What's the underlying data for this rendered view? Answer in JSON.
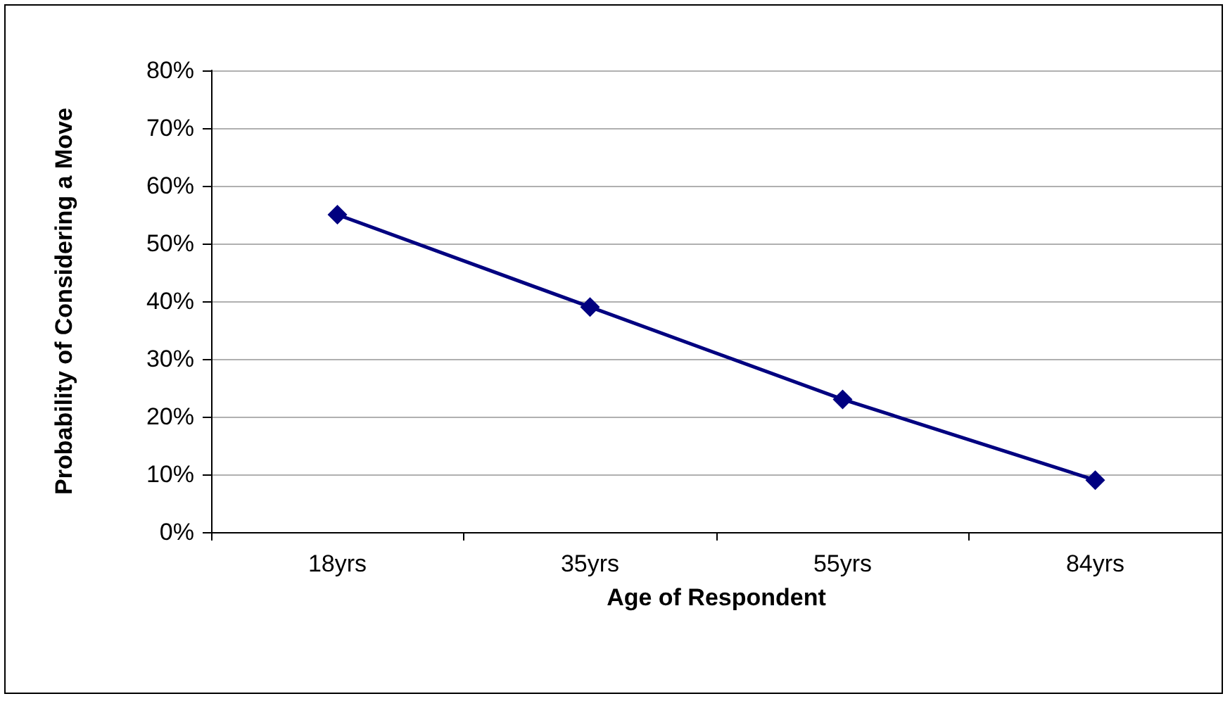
{
  "chart_data": {
    "type": "line",
    "xlabel": "Age of Respondent",
    "ylabel": "Probability of Considering a Move",
    "categories": [
      "18yrs",
      "35yrs",
      "55yrs",
      "84yrs"
    ],
    "series": [
      {
        "color": "#000080",
        "values": [
          55,
          39,
          23,
          9
        ]
      }
    ],
    "ylim": [
      0,
      80
    ],
    "yticks": [
      {
        "value": 0,
        "label": "0%"
      },
      {
        "value": 10,
        "label": "10%"
      },
      {
        "value": 20,
        "label": "20%"
      },
      {
        "value": 30,
        "label": "30%"
      },
      {
        "value": 40,
        "label": "40%"
      },
      {
        "value": 50,
        "label": "50%"
      },
      {
        "value": 60,
        "label": "60%"
      },
      {
        "value": 70,
        "label": "70%"
      },
      {
        "value": 80,
        "label": "80%"
      }
    ],
    "grid": "y",
    "marker": "diamond",
    "line_style": "solid"
  }
}
